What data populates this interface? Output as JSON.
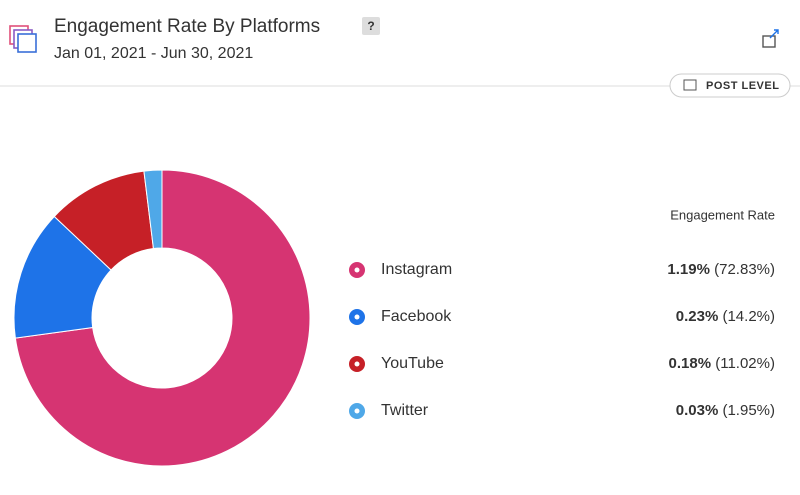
{
  "help": "?",
  "button": "POST LEVEL",
  "chart_data": {
    "type": "pie",
    "donut": true,
    "title": "Engagement Rate By Platforms",
    "subtitle": "Jan 01, 2021 - Jun 30, 2021",
    "legend_title": "Engagement Rate",
    "categories": [
      "Instagram",
      "Facebook",
      "YouTube",
      "Twitter"
    ],
    "values": [
      72.83,
      14.2,
      11.02,
      1.95
    ],
    "value_labels": [
      "(72.83%)",
      "(14.2%)",
      "(11.02%)",
      "(1.95%)"
    ],
    "colors": [
      "#d63472",
      "#1e73e8",
      "#c62027",
      "#4fa8e8"
    ],
    "engagement_rates": {
      "values": [
        1.19,
        0.23,
        0.18,
        0.03
      ],
      "value_labels": [
        "1.19%",
        "0.23%",
        "0.18%",
        "0.03%"
      ]
    }
  }
}
